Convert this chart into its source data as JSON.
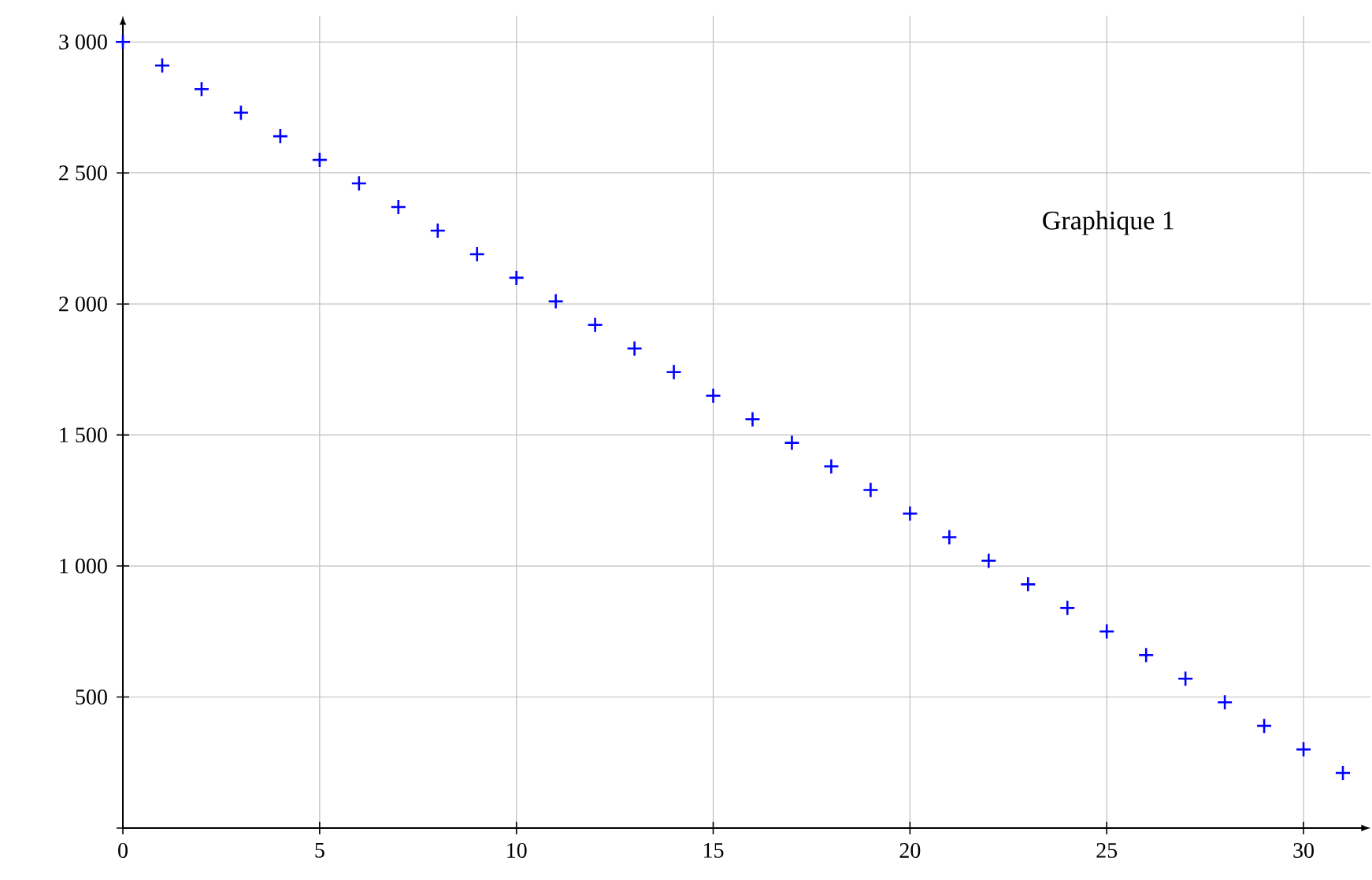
{
  "chart_data": {
    "type": "scatter",
    "annotations": [
      "Graphique 1"
    ],
    "x": [
      0,
      1,
      2,
      3,
      4,
      5,
      6,
      7,
      8,
      9,
      10,
      11,
      12,
      13,
      14,
      15,
      16,
      17,
      18,
      19,
      20,
      21,
      22,
      23,
      24,
      25,
      26,
      27,
      28,
      29,
      30,
      31
    ],
    "series": [
      {
        "color": "#0000ff",
        "values": [
          3000,
          2910,
          2820,
          2730,
          2640,
          2550,
          2460,
          2370,
          2280,
          2190,
          2100,
          2010,
          1920,
          1830,
          1740,
          1650,
          1560,
          1470,
          1380,
          1290,
          1200,
          1110,
          1020,
          930,
          840,
          750,
          660,
          570,
          480,
          390,
          300,
          210
        ]
      }
    ],
    "xlim": [
      0,
      31.7
    ],
    "ylim": [
      0,
      3100
    ],
    "xticks": [
      0,
      5,
      10,
      15,
      20,
      25,
      30
    ],
    "yticks": [
      {
        "value": 0,
        "label": null
      },
      {
        "value": 500,
        "label": "500"
      },
      {
        "value": 1000,
        "label": "1 000"
      },
      {
        "value": 1500,
        "label": "1 500"
      },
      {
        "value": 2000,
        "label": "2 000"
      },
      {
        "value": 2500,
        "label": "2 500"
      },
      {
        "value": 3000,
        "label": "3 000"
      }
    ],
    "grid": true,
    "marker": "cross"
  }
}
